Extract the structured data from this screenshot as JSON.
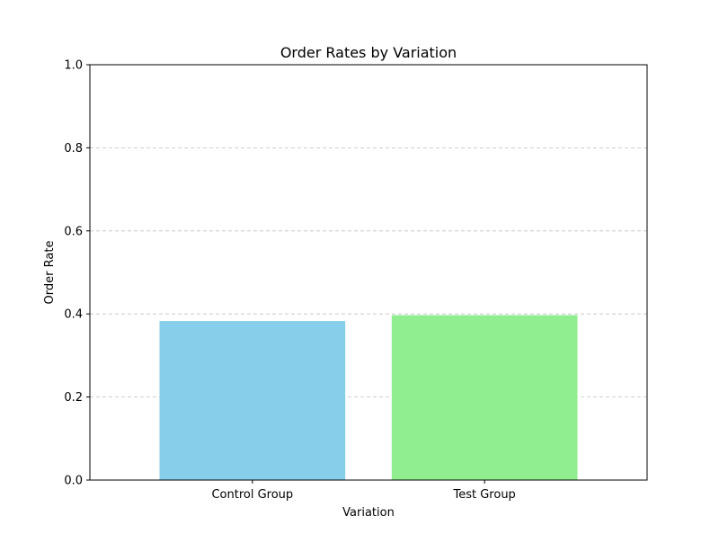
{
  "chart_data": {
    "type": "bar",
    "title": "Order Rates by Variation",
    "xlabel": "Variation",
    "ylabel": "Order Rate",
    "categories": [
      "Control Group",
      "Test Group"
    ],
    "values": [
      0.383,
      0.397
    ],
    "colors": [
      "#87ceeb",
      "#90ee90"
    ],
    "ylim": [
      0,
      1.0
    ],
    "yticks": [
      0.0,
      0.2,
      0.4,
      0.6,
      0.8,
      1.0
    ],
    "ytick_labels": [
      "0.0",
      "0.2",
      "0.4",
      "0.6",
      "0.8",
      "1.0"
    ],
    "grid": {
      "axis": "y",
      "style": "dashed",
      "color": "#c0c0c0"
    },
    "legend": "none"
  }
}
